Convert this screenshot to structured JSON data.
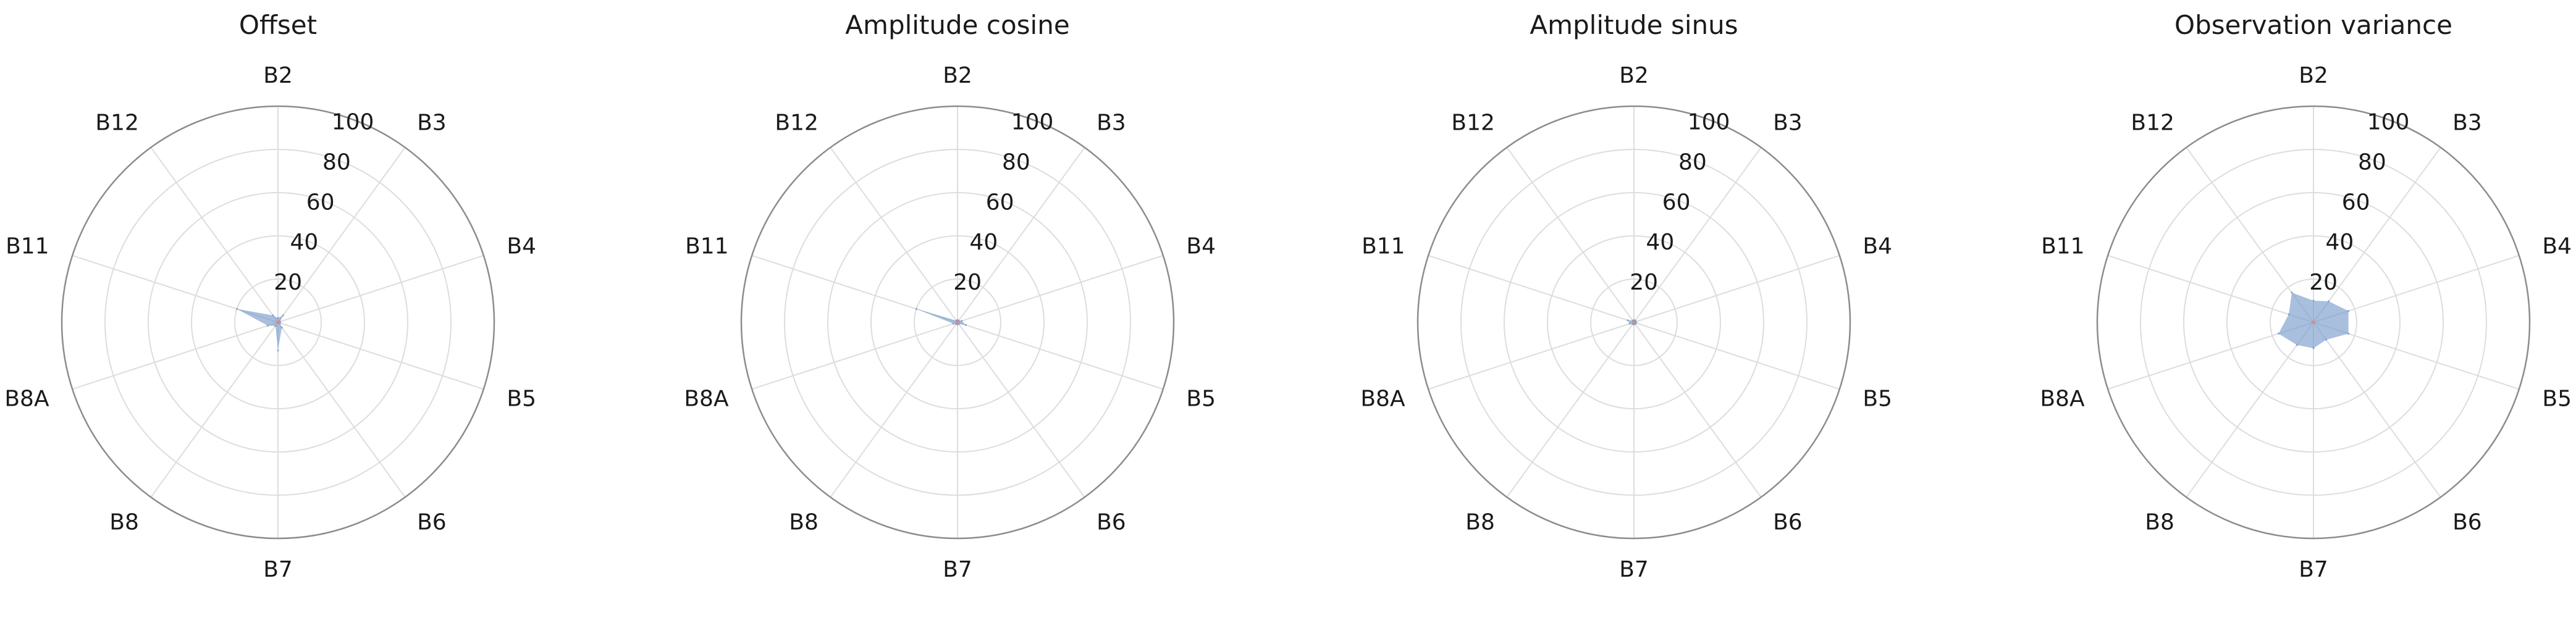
{
  "chart_data": [
    {
      "type": "radar",
      "title": "Offset",
      "categories": [
        "B2",
        "B3",
        "B4",
        "B5",
        "B6",
        "B7",
        "B8",
        "B8A",
        "B11",
        "B12"
      ],
      "rlim": [
        0,
        100
      ],
      "rticks": [
        20,
        40,
        60,
        80,
        100
      ],
      "values": [
        2,
        4,
        1,
        1,
        3,
        13,
        2,
        5,
        20,
        4
      ],
      "fill_color": "#7a9ccb",
      "grid": true
    },
    {
      "type": "radar",
      "title": "Amplitude cosine",
      "categories": [
        "B2",
        "B3",
        "B4",
        "B5",
        "B6",
        "B7",
        "B8",
        "B8A",
        "B11",
        "B12"
      ],
      "rlim": [
        0,
        100
      ],
      "rticks": [
        20,
        40,
        60,
        80,
        100
      ],
      "values": [
        1,
        1,
        2,
        4,
        1,
        1,
        1,
        2,
        20,
        1
      ],
      "fill_color": "#7a9ccb",
      "grid": true
    },
    {
      "type": "radar",
      "title": "Amplitude sinus",
      "categories": [
        "B2",
        "B3",
        "B4",
        "B5",
        "B6",
        "B7",
        "B8",
        "B8A",
        "B11",
        "B12"
      ],
      "rlim": [
        0,
        100
      ],
      "rticks": [
        20,
        40,
        60,
        80,
        100
      ],
      "values": [
        1,
        1,
        1,
        1,
        1,
        1,
        1,
        2,
        3,
        1
      ],
      "fill_color": "#7a9ccb",
      "grid": true
    },
    {
      "type": "radar",
      "title": "Observation variance",
      "categories": [
        "B2",
        "B3",
        "B4",
        "B5",
        "B6",
        "B7",
        "B8",
        "B8A",
        "B11",
        "B12"
      ],
      "rlim": [
        0,
        100
      ],
      "rticks": [
        20,
        40,
        60,
        80,
        100
      ],
      "values": [
        10,
        12,
        17,
        17,
        10,
        12,
        13,
        17,
        12,
        17
      ],
      "fill_color": "#7a9ccb",
      "grid": true
    }
  ]
}
